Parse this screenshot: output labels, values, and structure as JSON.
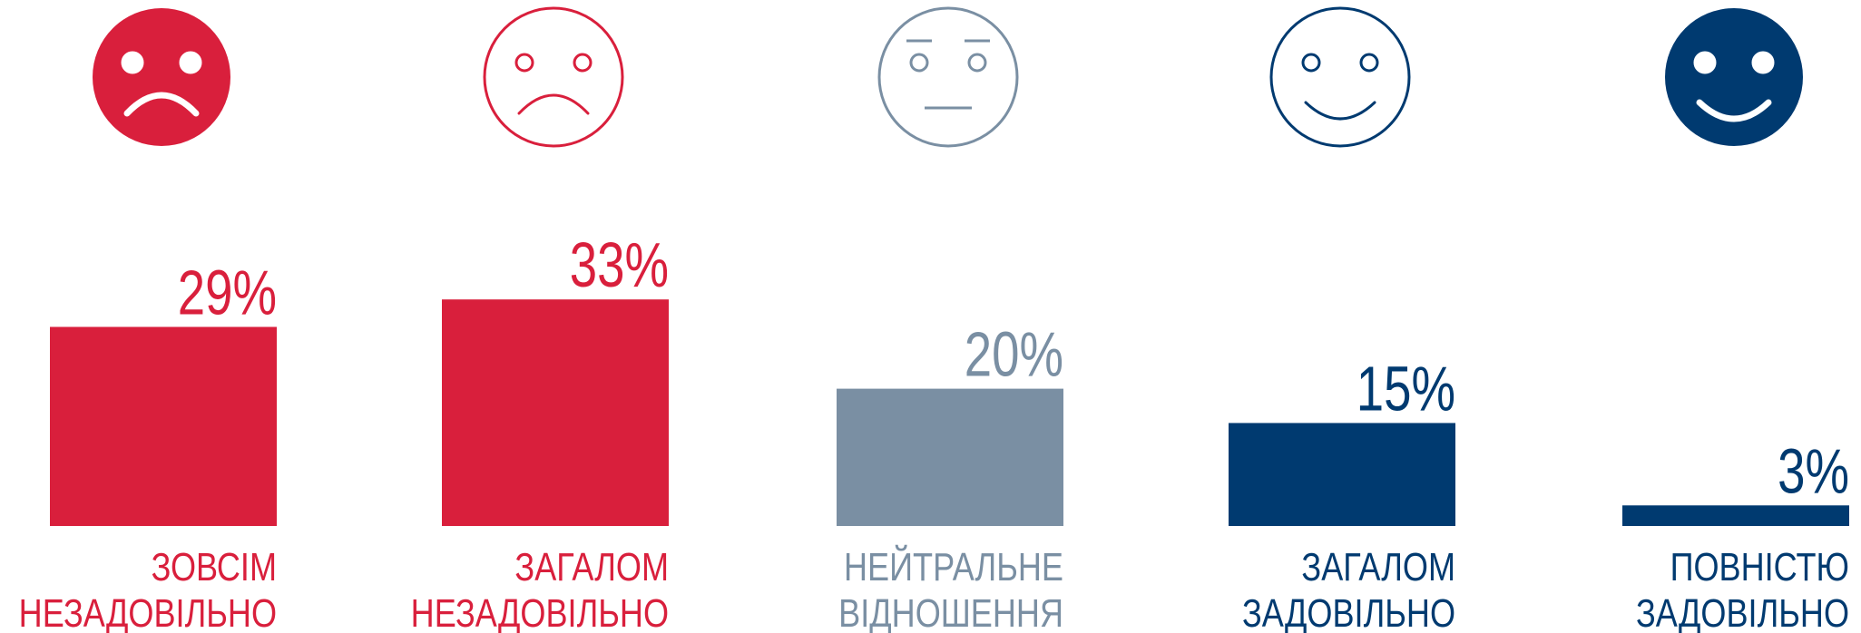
{
  "chart_data": {
    "type": "bar",
    "categories": [
      [
        "ЗОВСІМ",
        "НЕЗАДОВІЛЬНО"
      ],
      [
        "ЗАГАЛОМ",
        "НЕЗАДОВІЛЬНО"
      ],
      [
        "НЕЙТРАЛЬНЕ",
        "ВІДНОШЕННЯ"
      ],
      [
        "ЗАГАЛОМ",
        "ЗАДОВІЛЬНО"
      ],
      [
        "ПОВНІСТЮ",
        "ЗАДОВІЛЬНО"
      ]
    ],
    "values": [
      29,
      33,
      20,
      15,
      3
    ],
    "value_labels": [
      "29%",
      "33%",
      "20%",
      "15%",
      "3%"
    ],
    "colors": [
      "#d91f3c",
      "#d91f3c",
      "#7a8fa3",
      "#003a70",
      "#003a70"
    ]
  }
}
